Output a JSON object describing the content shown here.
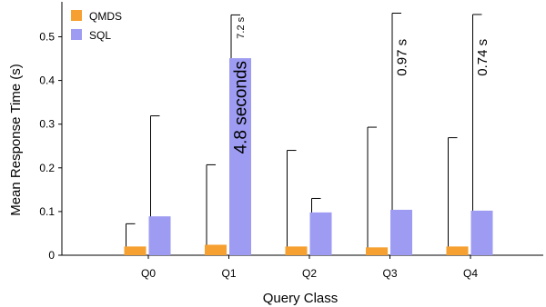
{
  "chart_data": {
    "type": "bar",
    "title": "",
    "xlabel": "Query Class",
    "ylabel": "Mean Response Time (s)",
    "ylim": [
      0,
      0.58
    ],
    "yticks": [
      0,
      0.1,
      0.2,
      0.3,
      0.4,
      0.5
    ],
    "ytick_labels": [
      "0",
      "0.1",
      "0.2",
      "0.3",
      "0.4",
      "0.5"
    ],
    "categories": [
      "Q0",
      "Q1",
      "Q2",
      "Q3",
      "Q4"
    ],
    "legend_position": "top-left",
    "grid": false,
    "series": [
      {
        "name": "QMDS",
        "color": "#f5a030",
        "values": [
          0.02,
          0.024,
          0.02,
          0.018,
          0.02
        ],
        "error_upper": [
          0.072,
          0.207,
          0.24,
          0.293,
          0.269
        ]
      },
      {
        "name": "SQL",
        "color": "#9d9cf2",
        "values": [
          0.089,
          0.451,
          0.098,
          0.104,
          0.102
        ],
        "error_upper": [
          0.319,
          0.55,
          0.13,
          0.554,
          0.551
        ]
      }
    ],
    "annotations": [
      {
        "category": "Q1",
        "series": "SQL",
        "text": "7.2 s",
        "size": "small",
        "y_top": 0.545
      },
      {
        "category": "Q1",
        "series": "SQL",
        "text": "4.8 seconds",
        "size": "large",
        "y_top": 0.445
      },
      {
        "category": "Q3",
        "series": "SQL",
        "text": "0.97 s",
        "size": "medium",
        "y_top": 0.495
      },
      {
        "category": "Q4",
        "series": "SQL",
        "text": "0.74 s",
        "size": "medium",
        "y_top": 0.495
      }
    ]
  }
}
